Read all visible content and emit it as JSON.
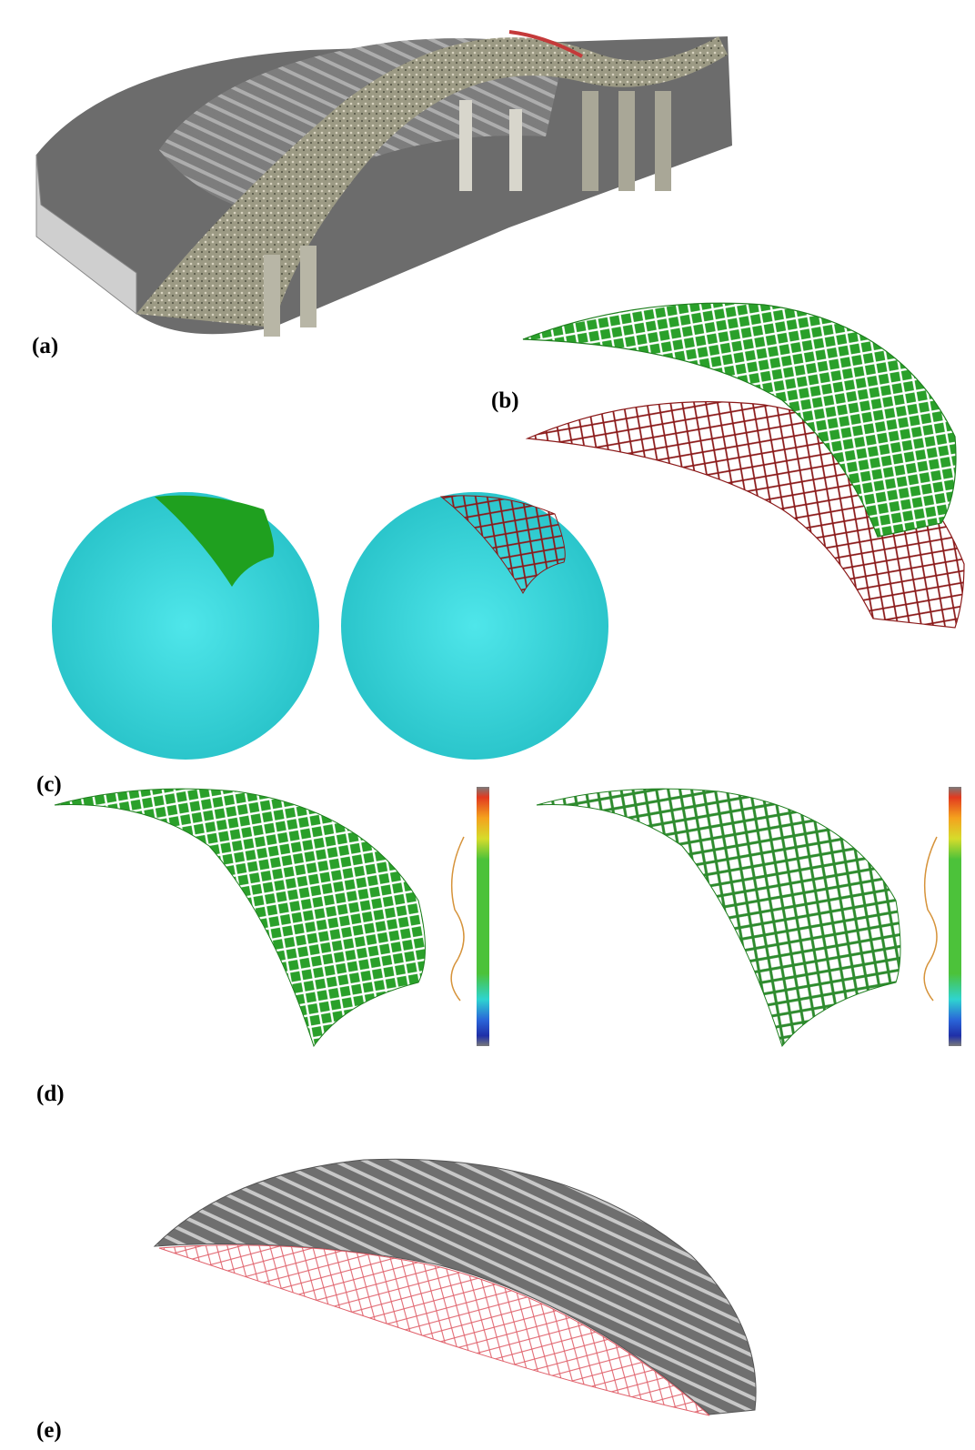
{
  "figure": {
    "panels": [
      {
        "label": "(a)",
        "content": "point-cloud-scan"
      },
      {
        "label": "(b)",
        "content": "mesh-and-wireframe-shell"
      },
      {
        "label": "(c)",
        "content": "sphere-fitting"
      },
      {
        "label": "(d)",
        "content": "deviation-maps"
      },
      {
        "label": "(e)",
        "content": "shell-overlay"
      }
    ]
  },
  "colors": {
    "mesh_green": "#2aa02a",
    "wire_red": "#8b1a1a",
    "sphere_cyan": "#33d3d8",
    "overlay_red": "#e0606a",
    "shell_gray": "#8a8a8a"
  }
}
